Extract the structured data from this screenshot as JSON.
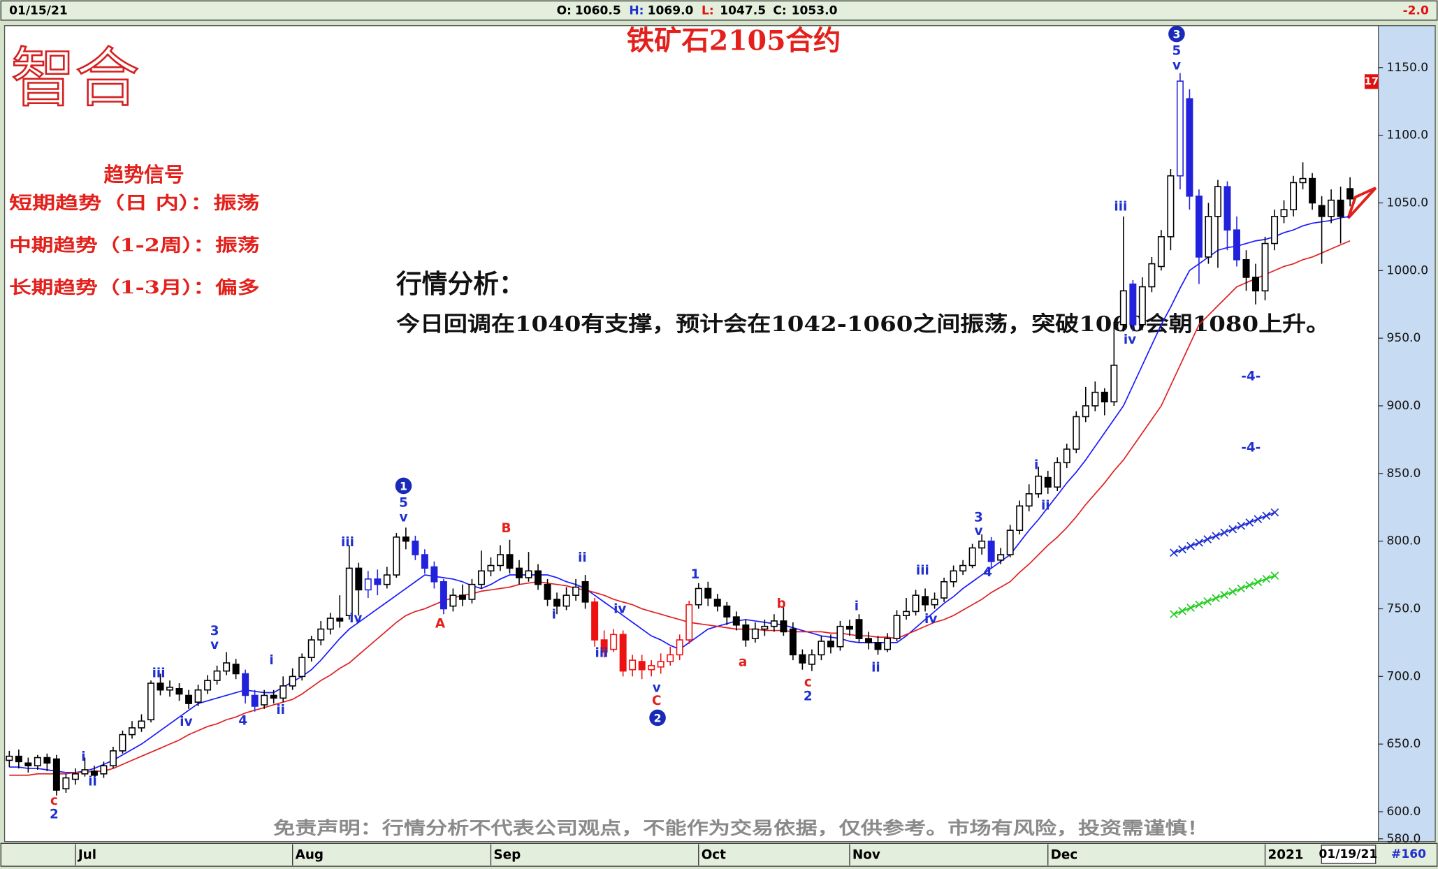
{
  "header": {
    "date": "01/15/21",
    "ohlc": [
      {
        "label": "O:",
        "value": "1060.5"
      },
      {
        "label": "H:",
        "value": "1069.0"
      },
      {
        "label": "L:",
        "value": "1047.5"
      },
      {
        "label": "C:",
        "value": "1053.0"
      }
    ],
    "change": "-2.0"
  },
  "logo": "智合",
  "marker": "17",
  "signals": {
    "title": "趋势信号",
    "items": [
      "短期趋势（日 内）：振荡",
      "中期趋势（1-2周）：振荡",
      "长期趋势（1-3月）：偏多"
    ]
  },
  "analysis": {
    "title": "行情分析：",
    "text": "今日回调在1040有支撑，预计会在1042-1060之间振荡，突破1060会朝1080上升。"
  },
  "disclaimer": "免责声明：行情分析不代表公司观点，不能作为交易依据，仅供参考。市场有风险，投资需谨慎！",
  "footer": {
    "date": "01/19/21",
    "count": "#160"
  },
  "chart_data": {
    "type": "candlestick",
    "title": "铁矿石2105合约",
    "open": [
      638,
      641,
      636,
      634,
      640,
      639,
      617,
      624,
      628,
      630,
      628,
      634,
      645,
      657,
      662,
      668,
      695,
      690,
      691,
      686,
      681,
      690,
      697,
      704,
      709,
      702,
      686,
      679,
      686,
      684,
      693,
      700,
      714,
      727,
      735,
      743,
      745,
      780,
      764,
      772,
      768,
      775,
      803,
      800,
      790,
      781,
      770,
      752,
      760,
      757,
      768,
      778,
      782,
      790,
      780,
      773,
      778,
      768,
      757,
      752,
      760,
      770,
      755,
      727,
      720,
      731,
      705,
      711,
      705,
      707,
      711,
      716,
      727,
      753,
      765,
      757,
      752,
      744,
      738,
      728,
      735,
      737,
      741,
      735,
      716,
      709,
      716,
      726,
      722,
      737,
      742,
      728,
      725,
      720,
      728,
      745,
      748,
      759,
      753,
      758,
      770,
      778,
      782,
      795,
      800,
      786,
      790,
      808,
      826,
      835,
      847,
      840,
      858,
      868,
      892,
      900,
      910,
      903,
      960,
      990,
      960,
      988,
      1003,
      1025,
      1070,
      1127,
      1055,
      1010,
      1040,
      1062,
      1030,
      1008,
      995,
      985,
      1020,
      1040,
      1045,
      1065,
      1068,
      1048,
      1040,
      1052,
      1060.5
    ],
    "high": [
      645,
      646,
      640,
      642,
      643,
      642,
      628,
      632,
      640,
      634,
      637,
      648,
      660,
      667,
      672,
      697,
      702,
      697,
      695,
      690,
      694,
      701,
      708,
      718,
      713,
      705,
      690,
      690,
      690,
      700,
      706,
      717,
      730,
      741,
      747,
      760,
      797,
      784,
      778,
      779,
      781,
      806,
      810,
      804,
      794,
      785,
      772,
      765,
      768,
      772,
      793,
      788,
      797,
      801,
      786,
      792,
      783,
      772,
      762,
      766,
      772,
      775,
      758,
      734,
      735,
      734,
      716,
      716,
      712,
      717,
      722,
      731,
      756,
      769,
      770,
      761,
      755,
      748,
      742,
      740,
      742,
      746,
      751,
      740,
      720,
      720,
      730,
      731,
      741,
      742,
      746,
      733,
      730,
      732,
      749,
      758,
      764,
      765,
      762,
      773,
      782,
      786,
      798,
      805,
      803,
      795,
      812,
      830,
      842,
      855,
      852,
      862,
      872,
      896,
      914,
      918,
      913,
      962,
      1040,
      993,
      995,
      1010,
      1030,
      1075,
      1146,
      1134,
      1060,
      1050,
      1067,
      1066,
      1040,
      1015,
      1005,
      1025,
      1045,
      1052,
      1070,
      1080,
      1072,
      1055,
      1060,
      1062,
      1069
    ],
    "low": [
      633,
      632,
      629,
      631,
      630,
      612,
      614,
      620,
      626,
      622,
      625,
      632,
      643,
      654,
      659,
      666,
      686,
      685,
      682,
      676,
      678,
      687,
      694,
      701,
      698,
      680,
      674,
      676,
      680,
      681,
      690,
      697,
      711,
      723,
      731,
      736,
      742,
      745,
      758,
      760,
      765,
      773,
      794,
      786,
      776,
      765,
      746,
      748,
      752,
      754,
      765,
      774,
      778,
      776,
      768,
      770,
      764,
      752,
      746,
      749,
      756,
      750,
      722,
      714,
      718,
      700,
      700,
      698,
      700,
      702,
      708,
      712,
      724,
      750,
      752,
      748,
      738,
      734,
      722,
      725,
      730,
      733,
      730,
      712,
      705,
      704,
      712,
      717,
      719,
      730,
      725,
      720,
      716,
      718,
      726,
      742,
      745,
      748,
      750,
      755,
      766,
      775,
      780,
      790,
      780,
      783,
      788,
      805,
      822,
      832,
      835,
      837,
      854,
      865,
      888,
      896,
      893,
      900,
      955,
      955,
      956,
      984,
      1000,
      1015,
      1060,
      1045,
      990,
      1005,
      1002,
      1015,
      1003,
      985,
      975,
      978,
      1015,
      1035,
      1040,
      1060,
      1045,
      1005,
      1035,
      1020,
      1047.5
    ],
    "close": [
      641,
      637,
      634,
      640,
      636,
      616,
      625,
      628,
      631,
      627,
      634,
      645,
      657,
      662,
      667,
      695,
      690,
      692,
      687,
      680,
      690,
      697,
      704,
      710,
      702,
      686,
      678,
      686,
      684,
      693,
      700,
      714,
      727,
      735,
      743,
      741,
      780,
      764,
      772,
      768,
      775,
      803,
      800,
      790,
      780,
      770,
      750,
      760,
      757,
      768,
      778,
      782,
      790,
      780,
      773,
      778,
      768,
      757,
      752,
      760,
      766,
      755,
      727,
      718,
      731,
      704,
      712,
      705,
      708,
      711,
      716,
      727,
      753,
      765,
      758,
      752,
      744,
      738,
      727,
      735,
      737,
      741,
      733,
      716,
      710,
      716,
      726,
      722,
      737,
      735,
      728,
      725,
      720,
      728,
      745,
      748,
      760,
      753,
      757,
      770,
      778,
      782,
      795,
      800,
      785,
      790,
      808,
      826,
      835,
      848,
      840,
      858,
      868,
      892,
      900,
      910,
      903,
      930,
      985,
      960,
      988,
      1005,
      1025,
      1070,
      1140,
      1055,
      1010,
      1040,
      1062,
      1030,
      1008,
      995,
      985,
      1020,
      1040,
      1045,
      1065,
      1068,
      1050,
      1040,
      1052,
      1040,
      1053
    ],
    "candle_colors": [
      "#000",
      "#000",
      "#000",
      "#000",
      "#000",
      "#000",
      "#000",
      "#000",
      "#000",
      "#000",
      "#000",
      "#000",
      "#000",
      "#000",
      "#000",
      "#000",
      "#000",
      "#000",
      "#000",
      "#000",
      "#000",
      "#000",
      "#000",
      "#000",
      "#000",
      "#22d",
      "#22d",
      "#000",
      "#000",
      "#000",
      "#000",
      "#000",
      "#000",
      "#000",
      "#000",
      "#000",
      "#000",
      "#000",
      "#22d",
      "#22d",
      "#000",
      "#000",
      "#000",
      "#22d",
      "#22d",
      "#22d",
      "#22d",
      "#000",
      "#000",
      "#000",
      "#000",
      "#000",
      "#000",
      "#000",
      "#000",
      "#000",
      "#000",
      "#000",
      "#000",
      "#000",
      "#000",
      "#000",
      "#e11",
      "#e11",
      "#e11",
      "#e11",
      "#e11",
      "#e11",
      "#e11",
      "#e11",
      "#e11",
      "#e11",
      "#e11",
      "#000",
      "#000",
      "#000",
      "#000",
      "#000",
      "#000",
      "#000",
      "#000",
      "#000",
      "#000",
      "#000",
      "#000",
      "#000",
      "#000",
      "#000",
      "#000",
      "#000",
      "#000",
      "#000",
      "#000",
      "#000",
      "#000",
      "#000",
      "#000",
      "#000",
      "#000",
      "#000",
      "#000",
      "#000",
      "#000",
      "#000",
      "#22d",
      "#000",
      "#000",
      "#000",
      "#000",
      "#000",
      "#000",
      "#000",
      "#000",
      "#000",
      "#000",
      "#000",
      "#000",
      "#000",
      "#000",
      "#22d",
      "#000",
      "#000",
      "#000",
      "#000",
      "#22d",
      "#22d",
      "#22d",
      "#000",
      "#000",
      "#22d",
      "#22d",
      "#000",
      "#000",
      "#000",
      "#000",
      "#000",
      "#000",
      "#000",
      "#000",
      "#000",
      "#000",
      "#000",
      "#000"
    ],
    "ma_lines": [
      {
        "color": "#1a1aff",
        "values": [
          633,
          633,
          632,
          632,
          631,
          630,
          629,
          629,
          630,
          632,
          635,
          638,
          642,
          646,
          650,
          655,
          660,
          665,
          670,
          675,
          680,
          682,
          684,
          686,
          688,
          690,
          689,
          688,
          688,
          692,
          696,
          700,
          705,
          712,
          720,
          728,
          735,
          740,
          745,
          750,
          755,
          760,
          765,
          770,
          775,
          774,
          773,
          772,
          770,
          767,
          765,
          768,
          772,
          775,
          775,
          775,
          775,
          775,
          773,
          770,
          768,
          765,
          760,
          755,
          750,
          745,
          740,
          735,
          730,
          727,
          723,
          720,
          725,
          730,
          735,
          737,
          739,
          741,
          742,
          741,
          740,
          739,
          738,
          736,
          734,
          732,
          730,
          729,
          728,
          726,
          725,
          725,
          725,
          725,
          725,
          730,
          736,
          742,
          748,
          754,
          759,
          765,
          770,
          775,
          780,
          785,
          790,
          799,
          808,
          816,
          825,
          834,
          843,
          851,
          860,
          870,
          880,
          890,
          900,
          915,
          930,
          945,
          960,
          973,
          987,
          1000,
          1005,
          1010,
          1015,
          1017,
          1018,
          1020,
          1022,
          1023,
          1025,
          1028,
          1030,
          1033,
          1035,
          1036,
          1037,
          1039,
          1040
        ]
      },
      {
        "color": "#e02020",
        "values": [
          627,
          627,
          627,
          628,
          628,
          628,
          628,
          629,
          629,
          630,
          630,
          632,
          635,
          638,
          641,
          644,
          647,
          650,
          653,
          657,
          660,
          663,
          665,
          668,
          670,
          673,
          675,
          677,
          679,
          681,
          683,
          687,
          692,
          697,
          701,
          706,
          710,
          716,
          722,
          728,
          734,
          740,
          745,
          748,
          750,
          753,
          756,
          758,
          760,
          761,
          763,
          764,
          765,
          766,
          768,
          769,
          770,
          769,
          768,
          767,
          765,
          764,
          762,
          760,
          757,
          755,
          753,
          750,
          748,
          746,
          744,
          742,
          740,
          739,
          738,
          737,
          736,
          735,
          735,
          735,
          734,
          734,
          734,
          733,
          733,
          733,
          733,
          732,
          732,
          731,
          730,
          730,
          729,
          729,
          728,
          731,
          734,
          737,
          740,
          742,
          745,
          749,
          753,
          757,
          762,
          766,
          770,
          777,
          783,
          790,
          797,
          803,
          810,
          818,
          827,
          835,
          843,
          852,
          860,
          870,
          880,
          890,
          900,
          915,
          930,
          945,
          960,
          967,
          974,
          981,
          988,
          991,
          994,
          997,
          1000,
          1003,
          1005,
          1008,
          1010,
          1013,
          1016,
          1019,
          1022
        ]
      }
    ],
    "xlim": [
      -0.5,
      145
    ],
    "xticks": [
      {
        "value": 7,
        "label": "Jul"
      },
      {
        "value": 30,
        "label": "Aug"
      },
      {
        "value": 51,
        "label": "Sep"
      },
      {
        "value": 73,
        "label": "Oct"
      },
      {
        "value": 89,
        "label": "Nov"
      },
      {
        "value": 110,
        "label": "Dec"
      },
      {
        "value": 133,
        "label": "2021"
      }
    ],
    "ylim": [
      578,
      1181
    ],
    "yticks": [
      {
        "value": 580,
        "label": "580.0"
      },
      {
        "value": 600,
        "label": "600.0"
      },
      {
        "value": 650,
        "label": "650.0"
      },
      {
        "value": 700,
        "label": "700.0"
      },
      {
        "value": 750,
        "label": "750.0"
      },
      {
        "value": 800,
        "label": "800.0"
      },
      {
        "value": 850,
        "label": "850.0"
      },
      {
        "value": 900,
        "label": "900.0"
      },
      {
        "value": 950,
        "label": "950.0"
      },
      {
        "value": 1000,
        "label": "1000.0"
      },
      {
        "value": 1050,
        "label": "1050.0"
      },
      {
        "value": 1100,
        "label": "1100.0"
      },
      {
        "value": 1150,
        "label": "1150.0"
      }
    ],
    "annotations": [
      {
        "text": "c",
        "color": "#e3201b"
      },
      {
        "text": "2",
        "color": "#1f2fd0"
      },
      {
        "text": "i",
        "color": "#1f2fd0"
      },
      {
        "text": "ii",
        "color": "#1f2fd0"
      },
      {
        "text": "iii",
        "color": "#1f2fd0"
      },
      {
        "text": "iv",
        "color": "#1f2fd0"
      },
      {
        "text": "3",
        "color": "#1f2fd0"
      },
      {
        "text": "v",
        "color": "#1f2fd0"
      },
      {
        "text": "4",
        "color": "#1f2fd0"
      },
      {
        "text": "i",
        "color": "#1f2fd0"
      },
      {
        "text": "ii",
        "color": "#1f2fd0"
      },
      {
        "text": "iii",
        "color": "#1f2fd0"
      },
      {
        "text": "iv",
        "color": "#1f2fd0"
      },
      {
        "text": "5",
        "color": "#1f2fd0"
      },
      {
        "text": "v",
        "color": "#1f2fd0"
      },
      {
        "text": "A",
        "color": "#e3201b"
      },
      {
        "text": "B",
        "color": "#e3201b"
      },
      {
        "text": "i",
        "color": "#1f2fd0"
      },
      {
        "text": "ii",
        "color": "#1f2fd0"
      },
      {
        "text": "iii",
        "color": "#1f2fd0"
      },
      {
        "text": "iv",
        "color": "#1f2fd0"
      },
      {
        "text": "v",
        "color": "#1f2fd0"
      },
      {
        "text": "C",
        "color": "#e3201b"
      },
      {
        "text": "1",
        "color": "#1f2fd0"
      },
      {
        "text": "a",
        "color": "#e3201b"
      },
      {
        "text": "b",
        "color": "#e3201b"
      },
      {
        "text": "c",
        "color": "#e3201b"
      },
      {
        "text": "2",
        "color": "#1f2fd0"
      },
      {
        "text": "i",
        "color": "#1f2fd0"
      },
      {
        "text": "ii",
        "color": "#1f2fd0"
      },
      {
        "text": "iii",
        "color": "#1f2fd0"
      },
      {
        "text": "iv",
        "color": "#1f2fd0"
      },
      {
        "text": "3",
        "color": "#1f2fd0"
      },
      {
        "text": "v",
        "color": "#1f2fd0"
      },
      {
        "text": "4",
        "color": "#1f2fd0"
      },
      {
        "text": "i",
        "color": "#1f2fd0"
      },
      {
        "text": "ii",
        "color": "#1f2fd0"
      },
      {
        "text": "iii",
        "color": "#1f2fd0"
      },
      {
        "text": "iv",
        "color": "#1f2fd0"
      },
      {
        "text": "5",
        "color": "#1f2fd0"
      },
      {
        "text": "v",
        "color": "#1f2fd0"
      },
      {
        "text": "-4-",
        "color": "#1f2fd0"
      },
      {
        "text": "-4-",
        "color": "#1f2fd0"
      }
    ],
    "wave_circles": [
      "1",
      "2",
      "3"
    ]
  }
}
